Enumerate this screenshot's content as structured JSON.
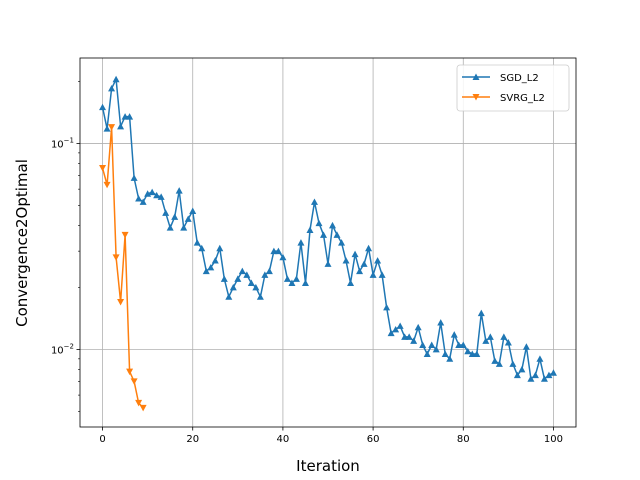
{
  "chart_data": {
    "type": "line",
    "xlabel": "Iteration",
    "ylabel": "Convergence2Optimal",
    "yscale": "log",
    "xlim": [
      -5,
      105
    ],
    "ylim": [
      0.0042,
      0.26
    ],
    "x_ticks": [
      0,
      20,
      40,
      60,
      80,
      100
    ],
    "y_ticks": [
      {
        "value": 0.01,
        "base": "10",
        "exp": "−2"
      },
      {
        "value": 0.1,
        "base": "10",
        "exp": "−1"
      }
    ],
    "grid": true,
    "legend_position": "top-right",
    "series": [
      {
        "name": "SGD_L2",
        "color": "#1f77b4",
        "marker": "triangle-up",
        "x": [
          0,
          1,
          2,
          3,
          4,
          5,
          6,
          7,
          8,
          9,
          10,
          11,
          12,
          13,
          14,
          15,
          16,
          17,
          18,
          19,
          20,
          21,
          22,
          23,
          24,
          25,
          26,
          27,
          28,
          29,
          30,
          31,
          32,
          33,
          34,
          35,
          36,
          37,
          38,
          39,
          40,
          41,
          42,
          43,
          44,
          45,
          46,
          47,
          48,
          49,
          50,
          51,
          52,
          53,
          54,
          55,
          56,
          57,
          58,
          59,
          60,
          61,
          62,
          63,
          64,
          65,
          66,
          67,
          68,
          69,
          70,
          71,
          72,
          73,
          74,
          75,
          76,
          77,
          78,
          79,
          80,
          81,
          82,
          83,
          84,
          85,
          86,
          87,
          88,
          89,
          90,
          91,
          92,
          93,
          94,
          95,
          96,
          97,
          98,
          99,
          100
        ],
        "values": [
          0.15,
          0.118,
          0.185,
          0.205,
          0.121,
          0.135,
          0.135,
          0.068,
          0.054,
          0.052,
          0.057,
          0.058,
          0.056,
          0.055,
          0.046,
          0.039,
          0.044,
          0.059,
          0.039,
          0.043,
          0.047,
          0.033,
          0.031,
          0.024,
          0.025,
          0.027,
          0.031,
          0.022,
          0.018,
          0.02,
          0.022,
          0.024,
          0.023,
          0.021,
          0.02,
          0.018,
          0.023,
          0.024,
          0.03,
          0.03,
          0.028,
          0.022,
          0.021,
          0.022,
          0.033,
          0.021,
          0.038,
          0.052,
          0.041,
          0.036,
          0.026,
          0.04,
          0.036,
          0.033,
          0.027,
          0.021,
          0.029,
          0.024,
          0.026,
          0.031,
          0.023,
          0.027,
          0.023,
          0.016,
          0.012,
          0.0125,
          0.013,
          0.0115,
          0.0115,
          0.011,
          0.0128,
          0.0105,
          0.0095,
          0.0105,
          0.01,
          0.0135,
          0.0095,
          0.009,
          0.0118,
          0.0105,
          0.0105,
          0.0098,
          0.0095,
          0.0095,
          0.015,
          0.011,
          0.0115,
          0.0088,
          0.0085,
          0.0115,
          0.0108,
          0.0085,
          0.0075,
          0.008,
          0.0103,
          0.0072,
          0.0075,
          0.009,
          0.0072,
          0.0075,
          0.0077
        ]
      },
      {
        "name": "SVRG_L2",
        "color": "#ff7f0e",
        "marker": "triangle-down",
        "x": [
          0,
          1,
          2,
          3,
          4,
          5,
          6,
          7,
          8,
          9
        ],
        "values": [
          0.076,
          0.063,
          0.12,
          0.028,
          0.017,
          0.036,
          0.0078,
          0.007,
          0.0055,
          0.0052
        ]
      }
    ]
  }
}
